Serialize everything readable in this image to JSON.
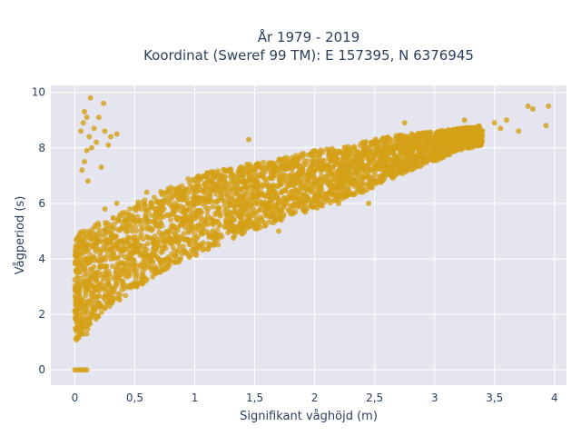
{
  "chart_data": {
    "type": "scatter",
    "title_line1": "År 1979 - 2019",
    "title_line2": "Koordinat (Sweref 99 TM): E 157395, N 6376945",
    "xlabel": "Signifikant våghöjd (m)",
    "ylabel": "Vågperiod (s)",
    "xlim": [
      -0.2,
      4.1
    ],
    "ylim": [
      -0.55,
      10.25
    ],
    "xticks": [
      0,
      0.5,
      1,
      1.5,
      2,
      2.5,
      3,
      3.5,
      4
    ],
    "xtick_labels": [
      "0",
      "0,5",
      "1",
      "1,5",
      "2",
      "2,5",
      "3",
      "3,5",
      "4"
    ],
    "yticks": [
      0,
      2,
      4,
      6,
      8,
      10
    ],
    "ytick_labels": [
      "0",
      "2",
      "4",
      "6",
      "8",
      "10"
    ],
    "grid": true,
    "marker_color": "#D4A017",
    "plot_background": "#E5E5EF",
    "points": [
      [
        0.0,
        0.0
      ],
      [
        0.02,
        0.0
      ],
      [
        0.04,
        0.0
      ],
      [
        0.06,
        0.0
      ],
      [
        0.08,
        0.0
      ],
      [
        0.1,
        0.0
      ],
      [
        0.02,
        1.2
      ],
      [
        0.05,
        1.4
      ],
      [
        0.08,
        1.6
      ],
      [
        0.1,
        1.3
      ],
      [
        0.12,
        1.8
      ],
      [
        0.15,
        2.0
      ],
      [
        0.03,
        2.2
      ],
      [
        0.06,
        2.5
      ],
      [
        0.09,
        2.8
      ],
      [
        0.02,
        3.0
      ],
      [
        0.04,
        3.3
      ],
      [
        0.07,
        3.6
      ],
      [
        0.1,
        3.9
      ],
      [
        0.05,
        4.2
      ],
      [
        0.08,
        4.5
      ],
      [
        0.12,
        4.8
      ],
      [
        0.15,
        2.6
      ],
      [
        0.18,
        3.0
      ],
      [
        0.2,
        3.4
      ],
      [
        0.22,
        2.3
      ],
      [
        0.25,
        3.7
      ],
      [
        0.28,
        3.1
      ],
      [
        0.3,
        4.0
      ],
      [
        0.32,
        2.8
      ],
      [
        0.35,
        3.5
      ],
      [
        0.38,
        4.3
      ],
      [
        0.4,
        3.2
      ],
      [
        0.42,
        4.6
      ],
      [
        0.45,
        3.8
      ],
      [
        0.48,
        5.0
      ],
      [
        0.05,
        8.6
      ],
      [
        0.07,
        8.9
      ],
      [
        0.08,
        9.3
      ],
      [
        0.1,
        9.1
      ],
      [
        0.12,
        8.4
      ],
      [
        0.1,
        7.9
      ],
      [
        0.14,
        8.0
      ],
      [
        0.08,
        7.5
      ],
      [
        0.06,
        7.2
      ],
      [
        0.16,
        8.7
      ],
      [
        0.2,
        9.1
      ],
      [
        0.13,
        9.8
      ],
      [
        0.25,
        8.6
      ],
      [
        0.3,
        8.4
      ],
      [
        0.22,
        7.3
      ],
      [
        0.18,
        8.2
      ],
      [
        0.11,
        6.8
      ],
      [
        0.24,
        9.6
      ],
      [
        0.28,
        8.1
      ],
      [
        0.35,
        8.5
      ],
      [
        0.5,
        3.6
      ],
      [
        0.55,
        4.2
      ],
      [
        0.6,
        4.8
      ],
      [
        0.65,
        3.9
      ],
      [
        0.7,
        5.2
      ],
      [
        0.75,
        4.5
      ],
      [
        0.8,
        5.6
      ],
      [
        0.85,
        4.8
      ],
      [
        0.9,
        5.3
      ],
      [
        0.95,
        6.0
      ],
      [
        1.0,
        4.6
      ],
      [
        1.05,
        5.5
      ],
      [
        1.1,
        6.3
      ],
      [
        1.15,
        5.0
      ],
      [
        1.2,
        5.8
      ],
      [
        1.25,
        6.5
      ],
      [
        1.3,
        5.3
      ],
      [
        1.35,
        6.1
      ],
      [
        1.4,
        6.8
      ],
      [
        1.45,
        5.6
      ],
      [
        1.5,
        6.3
      ],
      [
        1.55,
        7.0
      ],
      [
        1.6,
        5.8
      ],
      [
        1.65,
        6.6
      ],
      [
        1.7,
        7.2
      ],
      [
        1.75,
        6.1
      ],
      [
        1.8,
        6.8
      ],
      [
        1.85,
        7.4
      ],
      [
        1.9,
        6.3
      ],
      [
        1.95,
        7.0
      ],
      [
        2.0,
        7.5
      ],
      [
        2.05,
        6.6
      ],
      [
        2.1,
        7.2
      ],
      [
        2.15,
        7.7
      ],
      [
        2.2,
        6.9
      ],
      [
        2.25,
        7.4
      ],
      [
        2.3,
        7.9
      ],
      [
        2.35,
        7.1
      ],
      [
        2.4,
        7.6
      ],
      [
        2.45,
        8.0
      ],
      [
        2.5,
        7.4
      ],
      [
        2.55,
        7.8
      ],
      [
        2.6,
        8.1
      ],
      [
        2.65,
        7.6
      ],
      [
        2.7,
        8.0
      ],
      [
        2.75,
        8.3
      ],
      [
        2.8,
        7.8
      ],
      [
        2.85,
        8.2
      ],
      [
        2.9,
        8.5
      ],
      [
        2.95,
        8.0
      ],
      [
        3.0,
        8.4
      ],
      [
        3.05,
        8.6
      ],
      [
        3.1,
        8.2
      ],
      [
        3.2,
        8.5
      ],
      [
        3.3,
        8.7
      ],
      [
        3.4,
        8.6
      ],
      [
        3.5,
        8.9
      ],
      [
        3.55,
        8.7
      ],
      [
        3.6,
        9.0
      ],
      [
        3.7,
        8.6
      ],
      [
        3.78,
        9.5
      ],
      [
        3.82,
        9.4
      ],
      [
        3.95,
        9.5
      ],
      [
        3.93,
        8.8
      ],
      [
        3.25,
        9.0
      ],
      [
        2.75,
        8.9
      ],
      [
        2.0,
        7.9
      ],
      [
        1.25,
        7.2
      ],
      [
        0.6,
        6.4
      ],
      [
        0.35,
        6.0
      ],
      [
        0.25,
        5.8
      ],
      [
        1.45,
        8.3
      ],
      [
        1.0,
        6.8
      ],
      [
        1.7,
        5.0
      ],
      [
        2.2,
        6.0
      ],
      [
        2.45,
        6.0
      ]
    ],
    "density_bands": [
      {
        "xs": [
          0.0,
          0.02,
          0.05,
          0.1,
          0.15,
          0.2,
          0.3,
          0.4,
          0.5,
          0.6,
          0.7,
          0.8,
          0.9,
          1.0,
          1.2,
          1.4,
          1.6,
          1.8,
          2.0,
          2.2,
          2.4,
          2.6,
          2.8,
          3.0,
          3.2,
          3.4
        ],
        "lo": [
          1.0,
          1.1,
          1.2,
          1.4,
          1.7,
          1.9,
          2.3,
          2.6,
          2.9,
          3.2,
          3.5,
          3.7,
          3.9,
          4.1,
          4.5,
          4.9,
          5.2,
          5.5,
          5.8,
          6.1,
          6.4,
          6.8,
          7.2,
          7.5,
          7.9,
          8.1
        ],
        "hi": [
          4.5,
          4.8,
          5.0,
          5.1,
          5.2,
          5.3,
          5.5,
          5.8,
          6.0,
          6.2,
          6.4,
          6.6,
          6.8,
          7.0,
          7.2,
          7.4,
          7.5,
          7.7,
          7.9,
          8.0,
          8.2,
          8.4,
          8.5,
          8.6,
          8.7,
          8.8
        ]
      }
    ]
  }
}
